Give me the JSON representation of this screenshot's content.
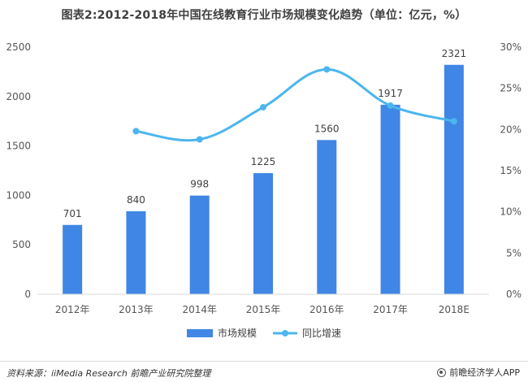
{
  "title": "图表2:2012-2018年中国在线教育行业市场规模变化趋势（单位：亿元，%）",
  "colors": {
    "bar": "#3f86e5",
    "line": "#4cb6ee",
    "axis": "#d9d9d9"
  },
  "chart_data": {
    "type": "bar+line",
    "categories": [
      "2012年",
      "2013年",
      "2014年",
      "2015年",
      "2016年",
      "2017年",
      "2018E"
    ],
    "series": [
      {
        "name": "市场规模",
        "type": "bar",
        "axis": "left",
        "values": [
          701,
          840,
          998,
          1225,
          1560,
          1917,
          2321
        ],
        "data_labels": [
          "701",
          "840",
          "998",
          "1225",
          "1560",
          "1917",
          "2321"
        ]
      },
      {
        "name": "同比增速",
        "type": "line",
        "axis": "right",
        "values": [
          null,
          19.8,
          18.8,
          22.7,
          27.3,
          22.9,
          21.0
        ]
      }
    ],
    "y_left": {
      "min": 0,
      "max": 2500,
      "ticks": [
        0,
        500,
        1000,
        1500,
        2000,
        2500
      ],
      "tick_labels": [
        "0",
        "500",
        "1000",
        "1500",
        "2000",
        "2500"
      ]
    },
    "y_right": {
      "min": 0,
      "max": 30,
      "ticks": [
        0,
        5,
        10,
        15,
        20,
        25,
        30
      ],
      "tick_labels": [
        "0%",
        "5%",
        "10%",
        "15%",
        "20%",
        "25%",
        "30%"
      ]
    },
    "legend_position": "bottom",
    "grid": false
  },
  "footer": {
    "source": "资料来源：iiMedia Research  前瞻产业研究院整理",
    "credit": "前瞻经济学人APP"
  }
}
